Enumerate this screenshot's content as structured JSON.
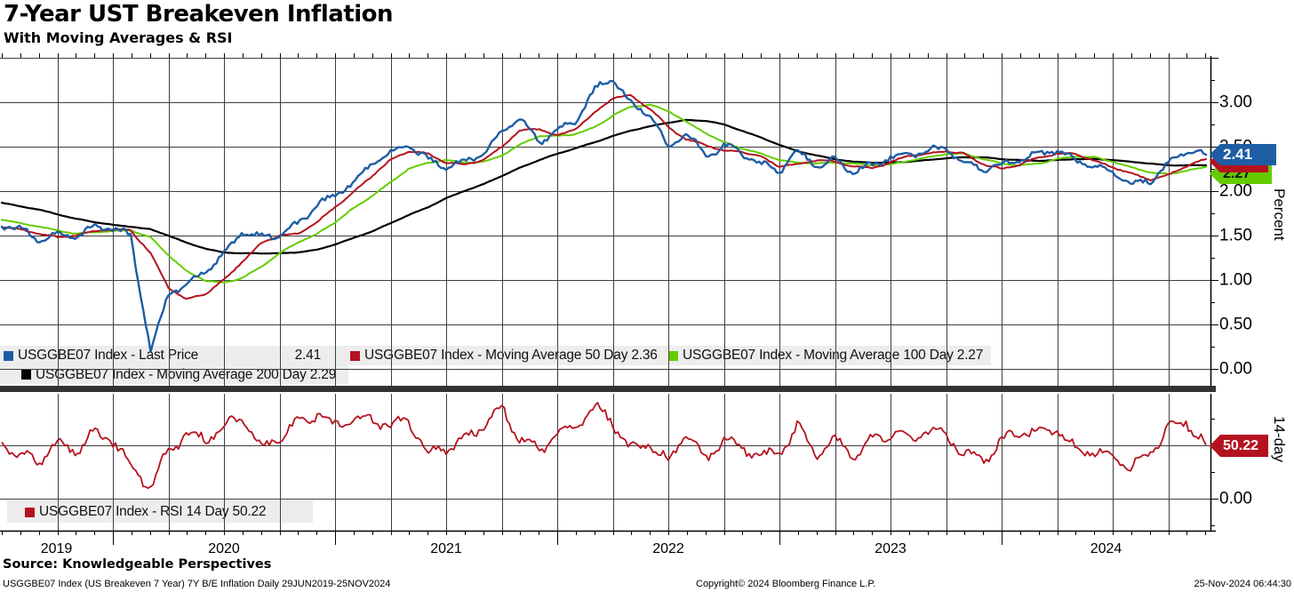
{
  "header": {
    "title": "7-Year UST Breakeven Inflation",
    "subtitle": "With Moving Averages & RSI"
  },
  "colors": {
    "last_price": "#1e5da4",
    "ma50": "#b5121f",
    "ma100": "#65cc01",
    "ma200": "#000000",
    "rsi": "#b5121f",
    "gridline": "#3f3f3f",
    "legend_bg": "#ededed",
    "separator": "#333333"
  },
  "badges": {
    "last": "2.41",
    "ma50": "2.36",
    "ma100": "2.27",
    "rsi": "50.22"
  },
  "footer": {
    "source": "Source: Knowledgeable Perspectives",
    "info": "USGGBE07 Index (US Breakeven 7 Year) 7Y B/E Inflation  Daily 29JUN2019-25NOV2024",
    "copyright": "Copyright© 2024 Bloomberg Finance L.P.",
    "timestamp": "25-Nov-2024 06:44:30"
  },
  "chart_data": [
    {
      "type": "line",
      "panel": "main",
      "title": "7-Year UST Breakeven Inflation",
      "ylabel": "Percent",
      "ylim": [
        -0.2,
        3.55
      ],
      "yticks": [
        "0.00",
        "0.50",
        "1.00",
        "1.50",
        "2.00",
        "2.50",
        "3.00"
      ],
      "x_years": [
        "2019",
        "2020",
        "2021",
        "2022",
        "2023",
        "2024"
      ],
      "date_range": "29JUN2019-25NOV2024",
      "grid": true,
      "legend_position": "bottom-left-overlay",
      "x": [
        2019.5,
        2019.58,
        2019.67,
        2019.75,
        2019.83,
        2019.92,
        2020.0,
        2020.08,
        2020.17,
        2020.25,
        2020.33,
        2020.42,
        2020.5,
        2020.58,
        2020.67,
        2020.75,
        2020.83,
        2020.92,
        2021.0,
        2021.08,
        2021.17,
        2021.25,
        2021.33,
        2021.42,
        2021.5,
        2021.58,
        2021.67,
        2021.75,
        2021.83,
        2021.92,
        2022.0,
        2022.08,
        2022.17,
        2022.25,
        2022.33,
        2022.42,
        2022.5,
        2022.58,
        2022.67,
        2022.75,
        2022.83,
        2022.92,
        2023.0,
        2023.08,
        2023.17,
        2023.25,
        2023.33,
        2023.42,
        2023.5,
        2023.58,
        2023.67,
        2023.75,
        2023.83,
        2023.92,
        2024.0,
        2024.08,
        2024.17,
        2024.25,
        2024.33,
        2024.42,
        2024.5,
        2024.58,
        2024.67,
        2024.75,
        2024.83,
        2024.92
      ],
      "series": [
        {
          "id": "last-price",
          "legend": "USGGBE07 Index - Last Price",
          "last": "2.41",
          "color": "#1e5da4",
          "width": 2.4,
          "jitter": 5,
          "values": [
            1.62,
            1.58,
            1.45,
            1.52,
            1.48,
            1.6,
            1.58,
            1.5,
            0.2,
            0.85,
            0.95,
            1.12,
            1.28,
            1.55,
            1.48,
            1.52,
            1.62,
            1.85,
            1.95,
            2.1,
            2.32,
            2.42,
            2.52,
            2.35,
            2.28,
            2.32,
            2.42,
            2.68,
            2.82,
            2.55,
            2.68,
            2.78,
            3.15,
            3.28,
            2.98,
            2.85,
            2.48,
            2.68,
            2.38,
            2.52,
            2.42,
            2.3,
            2.22,
            2.45,
            2.28,
            2.35,
            2.22,
            2.3,
            2.38,
            2.4,
            2.46,
            2.48,
            2.32,
            2.25,
            2.3,
            2.36,
            2.42,
            2.46,
            2.34,
            2.28,
            2.22,
            2.08,
            2.12,
            2.32,
            2.46,
            2.41
          ]
        },
        {
          "id": "ma-50",
          "legend": "USGGBE07 Index - Moving Average 50 Day 2.36",
          "last": "2.36",
          "color": "#b5121f",
          "width": 2,
          "jitter": 1.2,
          "values": [
            1.6,
            1.57,
            1.52,
            1.48,
            1.5,
            1.55,
            1.57,
            1.56,
            1.3,
            0.92,
            0.78,
            0.85,
            1.0,
            1.2,
            1.42,
            1.5,
            1.52,
            1.65,
            1.82,
            1.98,
            2.18,
            2.35,
            2.45,
            2.42,
            2.32,
            2.3,
            2.35,
            2.5,
            2.68,
            2.7,
            2.62,
            2.7,
            2.88,
            3.05,
            3.08,
            2.92,
            2.72,
            2.58,
            2.52,
            2.45,
            2.45,
            2.38,
            2.28,
            2.3,
            2.35,
            2.33,
            2.28,
            2.26,
            2.32,
            2.4,
            2.42,
            2.45,
            2.42,
            2.3,
            2.25,
            2.3,
            2.38,
            2.42,
            2.42,
            2.34,
            2.27,
            2.2,
            2.13,
            2.18,
            2.28,
            2.36
          ]
        },
        {
          "id": "ma-100",
          "legend": "USGGBE07 Index - Moving Average 100 Day 2.27",
          "last": "2.27",
          "color": "#65cc01",
          "width": 2,
          "jitter": 0.7,
          "values": [
            1.68,
            1.64,
            1.6,
            1.56,
            1.52,
            1.54,
            1.55,
            1.56,
            1.48,
            1.28,
            1.1,
            0.99,
            0.97,
            1.02,
            1.15,
            1.3,
            1.42,
            1.52,
            1.65,
            1.8,
            1.95,
            2.1,
            2.25,
            2.32,
            2.35,
            2.32,
            2.33,
            2.4,
            2.52,
            2.62,
            2.62,
            2.64,
            2.72,
            2.85,
            2.95,
            2.97,
            2.9,
            2.78,
            2.65,
            2.55,
            2.48,
            2.42,
            2.35,
            2.32,
            2.31,
            2.32,
            2.31,
            2.29,
            2.3,
            2.34,
            2.38,
            2.42,
            2.42,
            2.36,
            2.31,
            2.29,
            2.31,
            2.36,
            2.39,
            2.38,
            2.33,
            2.27,
            2.21,
            2.19,
            2.23,
            2.27
          ]
        },
        {
          "id": "ma-200",
          "legend": "USGGBE07 Index - Moving Average 200 Day 2.29",
          "last": "2.29",
          "color": "#000000",
          "width": 2.2,
          "jitter": 0.3,
          "values": [
            1.87,
            1.83,
            1.79,
            1.74,
            1.69,
            1.65,
            1.62,
            1.6,
            1.57,
            1.5,
            1.42,
            1.35,
            1.31,
            1.3,
            1.3,
            1.3,
            1.31,
            1.34,
            1.4,
            1.47,
            1.55,
            1.64,
            1.73,
            1.82,
            1.92,
            2.0,
            2.08,
            2.17,
            2.26,
            2.35,
            2.42,
            2.48,
            2.55,
            2.62,
            2.68,
            2.73,
            2.77,
            2.8,
            2.79,
            2.75,
            2.68,
            2.6,
            2.52,
            2.45,
            2.4,
            2.36,
            2.33,
            2.32,
            2.32,
            2.33,
            2.35,
            2.37,
            2.38,
            2.38,
            2.36,
            2.35,
            2.34,
            2.35,
            2.36,
            2.36,
            2.35,
            2.33,
            2.31,
            2.29,
            2.29,
            2.29
          ]
        }
      ]
    },
    {
      "type": "line",
      "panel": "rsi",
      "ylabel": "14-day",
      "ylim": [
        0,
        100
      ],
      "yticks": [
        "0.00"
      ],
      "grid": true,
      "x_shared_with": "chart_data.0.x",
      "series": [
        {
          "id": "rsi-14",
          "legend": "USGGBE07 Index - RSI 14 Day 50.22",
          "last": "50.22",
          "color": "#b5121f",
          "width": 1.8,
          "jitter": 9,
          "values": [
            55,
            40,
            35,
            52,
            45,
            62,
            55,
            32,
            10,
            45,
            60,
            57,
            68,
            74,
            48,
            58,
            72,
            80,
            68,
            76,
            74,
            68,
            73,
            42,
            48,
            55,
            68,
            84,
            58,
            44,
            62,
            68,
            88,
            72,
            45,
            52,
            34,
            62,
            35,
            58,
            46,
            40,
            44,
            68,
            40,
            56,
            40,
            55,
            62,
            54,
            64,
            60,
            42,
            36,
            54,
            64,
            60,
            66,
            46,
            44,
            40,
            30,
            42,
            68,
            72,
            50.22
          ]
        }
      ]
    }
  ]
}
